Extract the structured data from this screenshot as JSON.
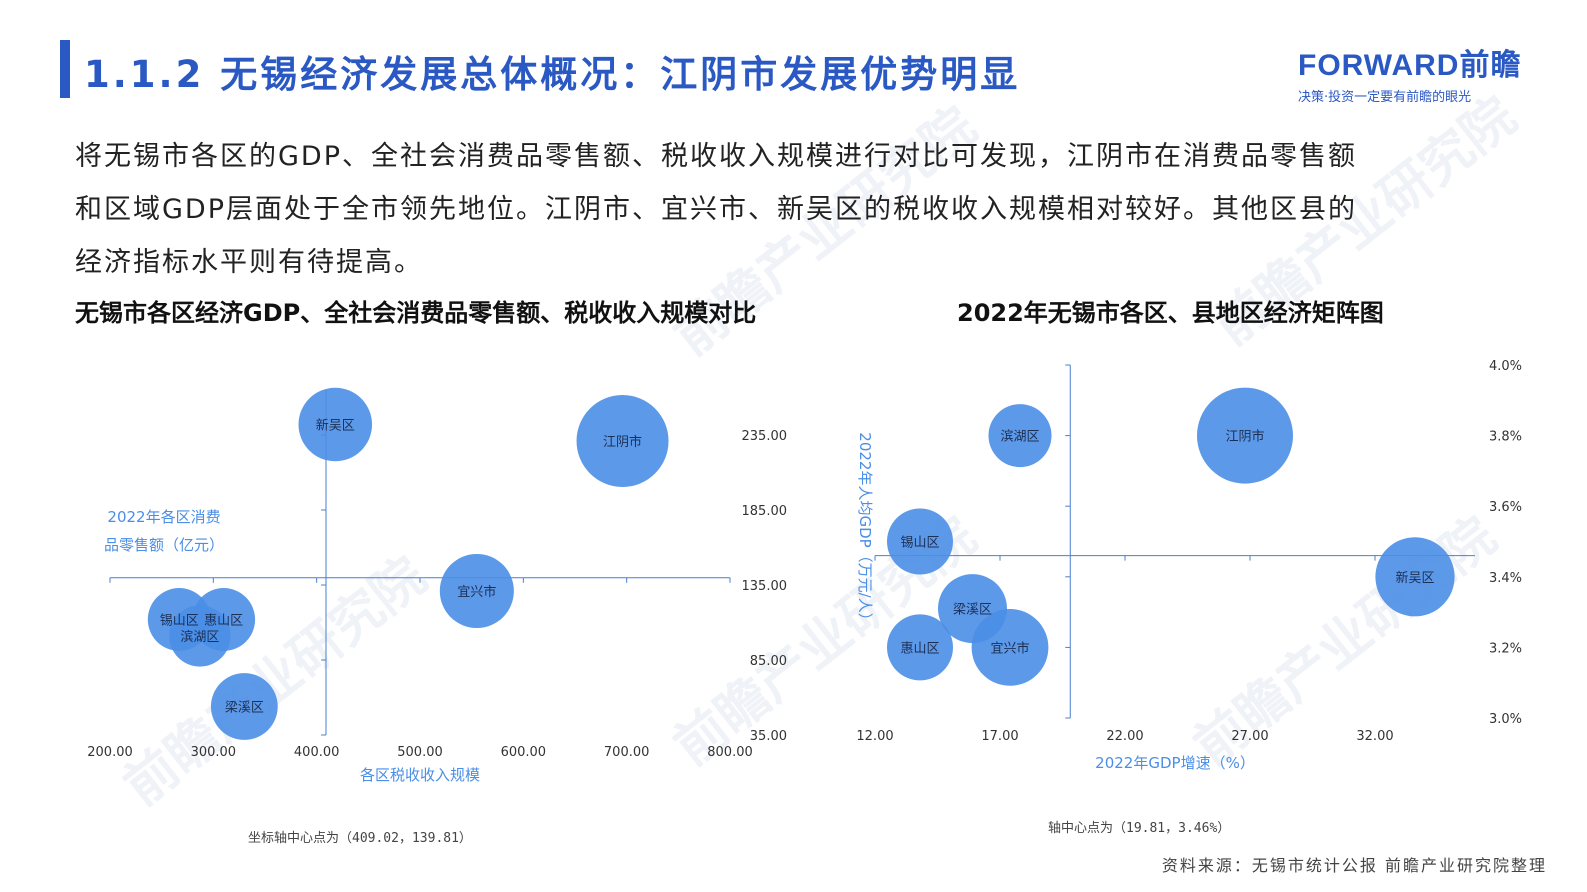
{
  "header": {
    "title": "1.1.2 无锡经济发展总体概况：江阴市发展优势明显",
    "logo_main": "FORWARD前瞻",
    "logo_sub": "决策·投资一定要有前瞻的眼光"
  },
  "intro": {
    "line1": "将无锡市各区的GDP、全社会消费品零售额、税收收入规模进行对比可发现，江阴市在消费品零售额",
    "line2": "和区域GDP层面处于全市领先地位。江阴市、宜兴市、新吴区的税收收入规模相对较好。其他区县的",
    "line3": "经济指标水平则有待提高。"
  },
  "watermark_text": "前瞻产业研究院",
  "footer": {
    "source": "资料来源：无锡市统计公报 前瞻产业研究院整理"
  },
  "chart_data": [
    {
      "type": "scatter",
      "title": "无锡市各区经济GDP、全社会消费品零售额、税收收入规模对比",
      "xlabel": "各区税收收入规模",
      "ylabel_line1": "2022年各区消费",
      "ylabel_line2": "品零售额（亿元）",
      "xlim": [
        200,
        800
      ],
      "ylim": [
        35,
        265
      ],
      "x_ticks": [
        "200.00",
        "300.00",
        "400.00",
        "500.00",
        "600.00",
        "700.00",
        "800.00"
      ],
      "y_ticks": [
        "35.00",
        "85.00",
        "135.00",
        "185.00",
        "235.00"
      ],
      "axis_center": [
        409.02,
        139.81
      ],
      "note": "坐标轴中心点为（409.02，139.81）",
      "points": [
        {
          "label": "新吴区",
          "x": 418,
          "y": 242,
          "size": 0.67
        },
        {
          "label": "江阴市",
          "x": 696,
          "y": 231,
          "size": 1.0
        },
        {
          "label": "宜兴市",
          "x": 555,
          "y": 131,
          "size": 0.68
        },
        {
          "label": "锡山区",
          "x": 267,
          "y": 112,
          "size": 0.48
        },
        {
          "label": "惠山区",
          "x": 310,
          "y": 112,
          "size": 0.48
        },
        {
          "label": "滨湖区",
          "x": 287,
          "y": 101,
          "size": 0.45
        },
        {
          "label": "梁溪区",
          "x": 330,
          "y": 54,
          "size": 0.55
        }
      ],
      "color": "#4a8ee6"
    },
    {
      "type": "scatter",
      "title": "2022年无锡市各区、县地区经济矩阵图",
      "xlabel": "2022年GDP增速（%）",
      "ylabel": "2022年人均GDP（万元/人）",
      "xlim": [
        12,
        36
      ],
      "ylim": [
        3.0,
        4.0
      ],
      "x_ticks": [
        "12.00",
        "17.00",
        "22.00",
        "27.00",
        "32.00"
      ],
      "y_ticks": [
        "3.0%",
        "3.2%",
        "3.4%",
        "3.6%",
        "3.8%",
        "4.0%"
      ],
      "axis_center": [
        19.81,
        3.46
      ],
      "note": "轴中心点为（19.81，3.46%）",
      "points": [
        {
          "label": "滨湖区",
          "x": 17.8,
          "y": 3.8,
          "size": 0.45
        },
        {
          "label": "江阴市",
          "x": 26.8,
          "y": 3.8,
          "size": 1.0
        },
        {
          "label": "锡山区",
          "x": 13.8,
          "y": 3.5,
          "size": 0.5
        },
        {
          "label": "新吴区",
          "x": 33.6,
          "y": 3.4,
          "size": 0.72
        },
        {
          "label": "梁溪区",
          "x": 15.9,
          "y": 3.31,
          "size": 0.55
        },
        {
          "label": "惠山区",
          "x": 13.8,
          "y": 3.2,
          "size": 0.5
        },
        {
          "label": "宜兴市",
          "x": 17.4,
          "y": 3.2,
          "size": 0.68
        }
      ],
      "color": "#4a8ee6"
    }
  ]
}
